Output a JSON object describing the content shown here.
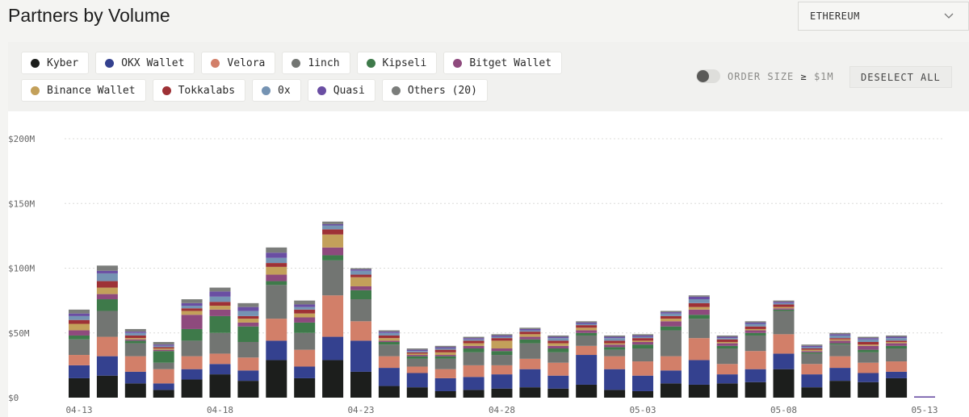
{
  "header": {
    "title": "Partners by Volume",
    "chain_value": "ETHEREUM"
  },
  "legend": [
    {
      "label": "Kyber",
      "color": "#1c1e1c"
    },
    {
      "label": "OKX Wallet",
      "color": "#34418f"
    },
    {
      "label": "Velora",
      "color": "#d27f69"
    },
    {
      "label": "1inch",
      "color": "#727572"
    },
    {
      "label": "Kipseli",
      "color": "#3e7a4a"
    },
    {
      "label": "Bitget Wallet",
      "color": "#8e4a7d"
    },
    {
      "label": "Binance Wallet",
      "color": "#c3a05a"
    },
    {
      "label": "Tokkalabs",
      "color": "#9e3136"
    },
    {
      "label": "0x",
      "color": "#7593b3"
    },
    {
      "label": "Quasi",
      "color": "#6a4ea3"
    },
    {
      "label": "Others (20)",
      "color": "#7b7d7b"
    }
  ],
  "controls": {
    "order_size_label": "ORDER SIZE",
    "order_size_symbol": "≥",
    "order_size_value": "$1M",
    "deselect_label": "DESELECT ALL"
  },
  "chart_data": {
    "type": "bar",
    "stacked": true,
    "grid": "horizontal dotted",
    "ylim": [
      0,
      200
    ],
    "y_ticks": [
      "$0",
      "$50M",
      "$100M",
      "$150M",
      "$200M"
    ],
    "x_ticks": [
      "04-13",
      "04-18",
      "04-23",
      "04-28",
      "05-03",
      "05-08",
      "05-13"
    ],
    "categories": [
      "04-13",
      "04-14",
      "04-15",
      "04-16",
      "04-17",
      "04-18",
      "04-19",
      "04-20",
      "04-21",
      "04-22",
      "04-23",
      "04-24",
      "04-25",
      "04-26",
      "04-27",
      "04-28",
      "04-29",
      "04-30",
      "05-01",
      "05-02",
      "05-03",
      "05-04",
      "05-05",
      "05-06",
      "05-07",
      "05-08",
      "05-09",
      "05-10",
      "05-11",
      "05-12",
      "05-13"
    ],
    "series": [
      {
        "name": "Kyber",
        "values": [
          15,
          17,
          11,
          6,
          14,
          18,
          13,
          29,
          15,
          29,
          20,
          9,
          8,
          5,
          6,
          7,
          8,
          7,
          10,
          6,
          5,
          11,
          10,
          11,
          12,
          22,
          8,
          13,
          12,
          15,
          0
        ]
      },
      {
        "name": "OKX Wallet",
        "values": [
          10,
          15,
          9,
          5,
          8,
          8,
          8,
          15,
          9,
          18,
          24,
          14,
          11,
          10,
          10,
          11,
          14,
          10,
          23,
          16,
          12,
          10,
          19,
          7,
          10,
          12,
          10,
          10,
          7,
          5,
          0
        ]
      },
      {
        "name": "Velora",
        "values": [
          8,
          15,
          12,
          11,
          10,
          8,
          10,
          17,
          13,
          32,
          15,
          9,
          5,
          7,
          9,
          7,
          8,
          10,
          7,
          10,
          11,
          11,
          17,
          8,
          14,
          15,
          8,
          9,
          8,
          8,
          0
        ]
      },
      {
        "name": "1inch",
        "values": [
          12,
          20,
          10,
          5,
          12,
          16,
          12,
          26,
          13,
          27,
          17,
          9,
          6,
          8,
          10,
          8,
          12,
          8,
          8,
          5,
          10,
          20,
          15,
          12,
          12,
          18,
          8,
          9,
          8,
          10,
          0
        ]
      },
      {
        "name": "Kipseli",
        "values": [
          3,
          9,
          2,
          9,
          9,
          13,
          12,
          3,
          8,
          4,
          7,
          2,
          2,
          2,
          3,
          3,
          3,
          3,
          2,
          2,
          3,
          3,
          3,
          2,
          2,
          1,
          1,
          1,
          2,
          2,
          0
        ]
      },
      {
        "name": "Bitget Wallet",
        "values": [
          4,
          4,
          1,
          1,
          11,
          5,
          3,
          5,
          4,
          6,
          3,
          1,
          1,
          1,
          2,
          2,
          2,
          2,
          2,
          2,
          2,
          4,
          4,
          2,
          2,
          1,
          1,
          2,
          3,
          2,
          0
        ]
      },
      {
        "name": "Binance Wallet",
        "values": [
          5,
          5,
          1,
          1,
          3,
          3,
          3,
          6,
          3,
          10,
          7,
          2,
          1,
          2,
          2,
          6,
          2,
          2,
          2,
          1,
          1,
          2,
          2,
          1,
          1,
          1,
          1,
          1,
          1,
          1,
          0
        ]
      },
      {
        "name": "Tokkalabs",
        "values": [
          3,
          5,
          2,
          1,
          2,
          3,
          2,
          3,
          3,
          4,
          2,
          2,
          1,
          2,
          2,
          2,
          2,
          2,
          2,
          2,
          2,
          2,
          3,
          2,
          2,
          2,
          1,
          1,
          2,
          1,
          0
        ]
      },
      {
        "name": "0x",
        "values": [
          3,
          6,
          2,
          1,
          2,
          4,
          4,
          4,
          2,
          3,
          3,
          2,
          1,
          1,
          1,
          1,
          1,
          2,
          1,
          2,
          1,
          2,
          3,
          1,
          2,
          1,
          1,
          2,
          2,
          2,
          0
        ]
      },
      {
        "name": "Quasi",
        "values": [
          2,
          2,
          1,
          1,
          2,
          4,
          3,
          4,
          2,
          1,
          1,
          1,
          1,
          1,
          1,
          1,
          1,
          1,
          1,
          1,
          1,
          1,
          2,
          1,
          1,
          1,
          1,
          1,
          1,
          1,
          1
        ]
      },
      {
        "name": "Others (20)",
        "values": [
          3,
          4,
          2,
          2,
          3,
          3,
          3,
          4,
          3,
          2,
          1,
          1,
          1,
          1,
          1,
          1,
          1,
          1,
          1,
          1,
          1,
          1,
          1,
          1,
          1,
          1,
          1,
          1,
          1,
          1,
          0
        ]
      }
    ]
  }
}
